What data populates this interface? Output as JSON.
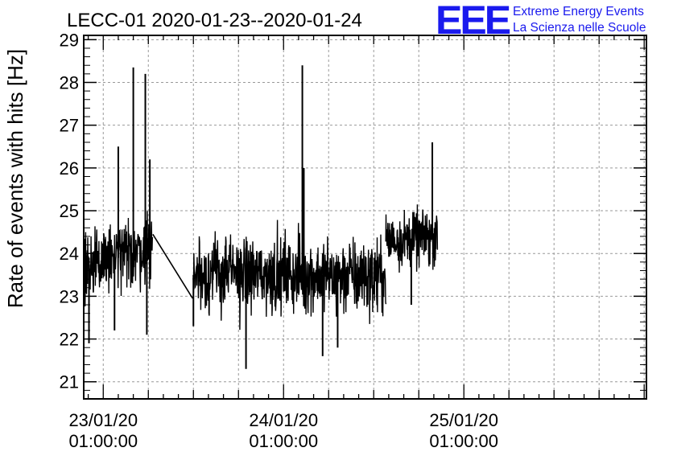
{
  "chart_data": {
    "type": "line",
    "title": "LECC-01 2020-01-23--2020-01-24",
    "ylabel": "Rate of events with hits [Hz]",
    "xlabel": "",
    "ylim": [
      20.6,
      29.1
    ],
    "xlim_hours": [
      -2.6,
      72.3
    ],
    "yticks": [
      21,
      22,
      23,
      24,
      25,
      26,
      27,
      28,
      29
    ],
    "xticks": [
      {
        "hour": 0,
        "date": "23/01/20",
        "time": "01:00:00"
      },
      {
        "hour": 24,
        "date": "24/01/20",
        "time": "01:00:00"
      },
      {
        "hour": 48,
        "date": "25/01/20",
        "time": "01:00:00"
      }
    ],
    "grid": true,
    "line_color": "#000000",
    "segments": [
      {
        "start_hour": -3.1,
        "end_hour": 6.6,
        "mean": 23.9,
        "spread": 0.55,
        "drift": 0.5
      },
      {
        "start_hour": 11.9,
        "end_hour": 37.6,
        "mean": 23.5,
        "spread": 0.6,
        "drift": -0.1
      },
      {
        "start_hour": 37.6,
        "end_hour": 44.5,
        "mean": 24.35,
        "spread": 0.45,
        "drift": 0.1
      }
    ],
    "gap_bridge": {
      "from": [
        6.6,
        24.45
      ],
      "to": [
        11.9,
        22.95
      ]
    },
    "spikes": [
      {
        "hour": -1.9,
        "value": 21.9
      },
      {
        "hour": 1.5,
        "value": 22.2
      },
      {
        "hour": 2.0,
        "value": 26.5
      },
      {
        "hour": 4.0,
        "value": 28.35
      },
      {
        "hour": 5.6,
        "value": 28.2
      },
      {
        "hour": 5.8,
        "value": 22.1
      },
      {
        "hour": 6.2,
        "value": 26.2
      },
      {
        "hour": 12.0,
        "value": 22.3
      },
      {
        "hour": 19.0,
        "value": 21.3
      },
      {
        "hour": 26.5,
        "value": 28.4
      },
      {
        "hour": 26.7,
        "value": 26.0
      },
      {
        "hour": 29.2,
        "value": 21.6
      },
      {
        "hour": 31.2,
        "value": 21.8
      },
      {
        "hour": 43.8,
        "value": 26.6
      },
      {
        "hour": 41.0,
        "value": 22.8
      }
    ]
  },
  "logo": {
    "mark": "EEE",
    "line1": "Extreme Energy Events",
    "line2": "La Scienza nelle Scuole"
  }
}
